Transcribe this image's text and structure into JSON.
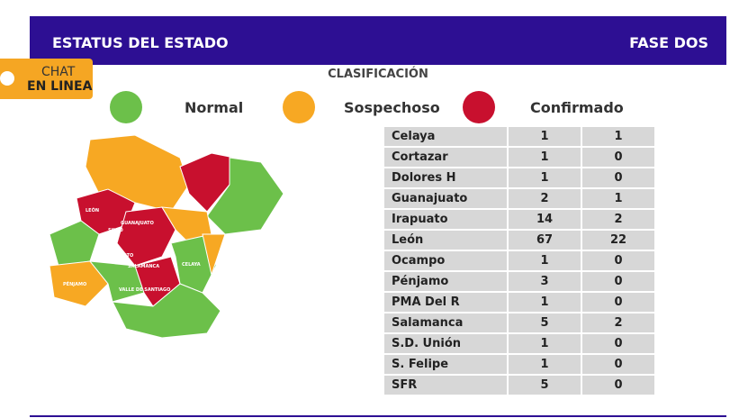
{
  "header": {
    "title": "ESTATUS DEL ESTADO",
    "phase": "FASE DOS"
  },
  "chat": {
    "line1": "CHAT",
    "line2": "EN LINEA"
  },
  "legend": {
    "title": "CLASIFICACIÓN",
    "items": [
      "Normal",
      "Sospechoso",
      "Confirmado"
    ]
  },
  "map": {
    "labels": [
      "LEÓN",
      "SILAO",
      "GUANAJUATO",
      "IRAPUATO",
      "SALAMANCA",
      "CELAYA",
      "VALLE DE SANTIAGO",
      "PÉNJAMO"
    ]
  },
  "table": {
    "rows": [
      [
        "Celaya",
        1,
        1
      ],
      [
        "Cortazar",
        1,
        0
      ],
      [
        "Dolores H",
        1,
        0
      ],
      [
        "Guanajuato",
        2,
        1
      ],
      [
        "Irapuato",
        14,
        2
      ],
      [
        "León",
        67,
        22
      ],
      [
        "Ocampo",
        1,
        0
      ],
      [
        "Pénjamo",
        3,
        0
      ],
      [
        "PMA Del R",
        1,
        0
      ],
      [
        "Salamanca",
        5,
        2
      ],
      [
        "S.D. Unión",
        1,
        0
      ],
      [
        "S. Felipe",
        1,
        0
      ],
      [
        "SFR",
        5,
        0
      ]
    ]
  }
}
